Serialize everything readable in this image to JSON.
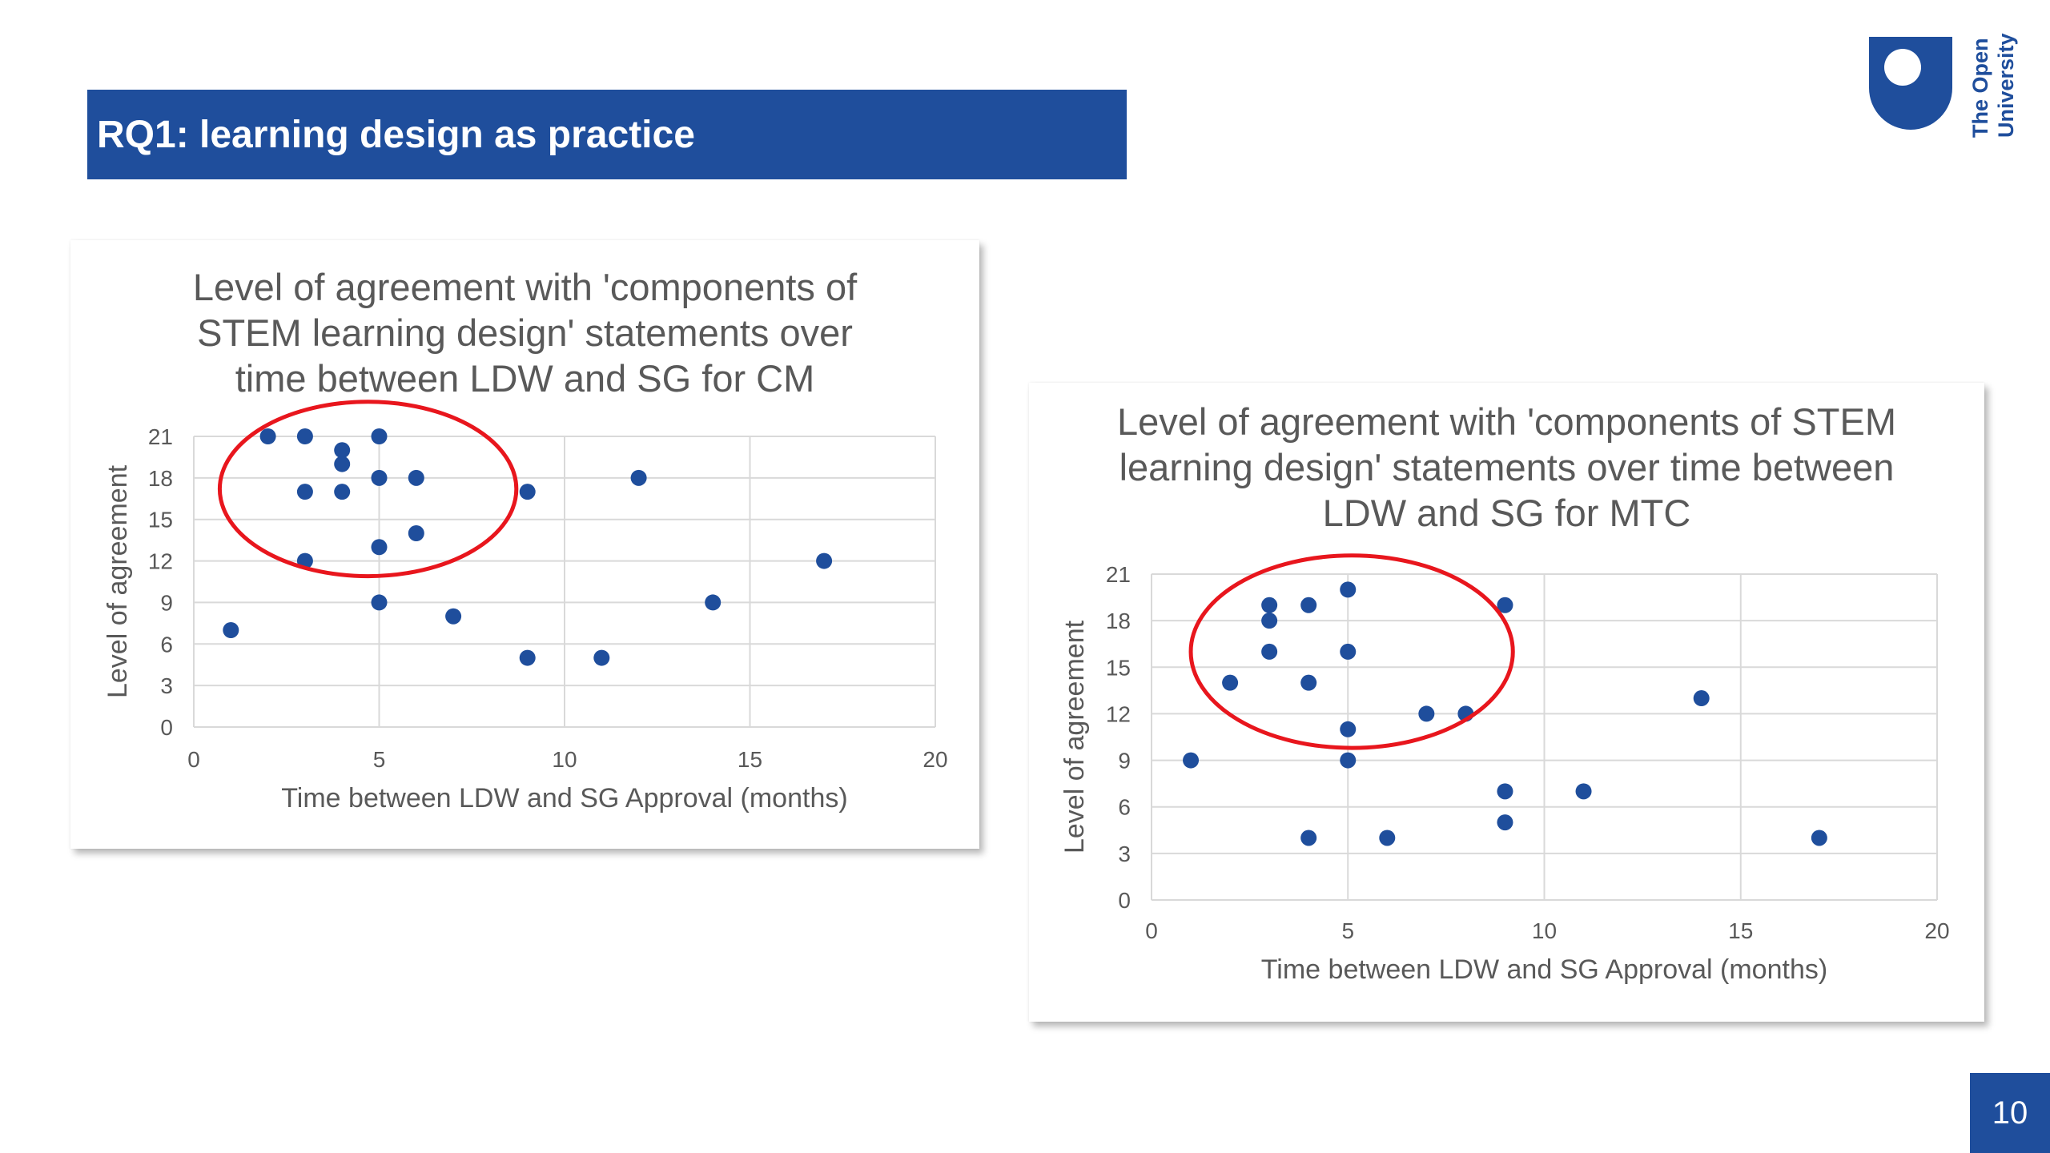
{
  "slide": {
    "title": "RQ1: learning design as practice",
    "logo_text": "The Open University",
    "page_number": "10",
    "brand_color": "#1f4e9c"
  },
  "chart_data": [
    {
      "type": "scatter",
      "title": "Level of agreement with 'components of STEM learning design' statements over time between LDW and SG for CM",
      "xlabel": "Time between LDW and SG Approval (months)",
      "ylabel": "Level of agreement",
      "xlim": [
        0,
        20
      ],
      "ylim": [
        0,
        21
      ],
      "x_ticks": [
        0,
        5,
        10,
        15,
        20
      ],
      "y_ticks": [
        0,
        3,
        6,
        9,
        12,
        15,
        18,
        21
      ],
      "grid": true,
      "marker_color": "#1f4e9c",
      "annotation": {
        "shape": "ellipse",
        "color": "#e8161d",
        "center": [
          4.7,
          17.2
        ],
        "radius": [
          4,
          6.3
        ]
      },
      "series": [
        {
          "x": [
            1,
            2,
            3,
            3,
            3,
            4,
            4,
            4,
            5,
            5,
            5,
            5,
            6,
            6,
            7,
            9,
            9,
            11,
            12,
            14,
            17
          ],
          "y": [
            7,
            21,
            21,
            17,
            12,
            20,
            19,
            17,
            21,
            18,
            13,
            9,
            18,
            14,
            8,
            17,
            5,
            5,
            18,
            9,
            12
          ]
        }
      ]
    },
    {
      "type": "scatter",
      "title": "Level of agreement with 'components of STEM learning design' statements over time between LDW and SG for MTC",
      "xlabel": "Time between LDW and SG Approval (months)",
      "ylabel": "Level of agreement",
      "xlim": [
        0,
        20
      ],
      "ylim": [
        0,
        21
      ],
      "x_ticks": [
        0,
        5,
        10,
        15,
        20
      ],
      "y_ticks": [
        0,
        3,
        6,
        9,
        12,
        15,
        18,
        21
      ],
      "grid": true,
      "marker_color": "#1f4e9c",
      "annotation": {
        "shape": "ellipse",
        "color": "#e8161d",
        "center": [
          5.1,
          16
        ],
        "radius": [
          4.1,
          6.2
        ]
      },
      "series": [
        {
          "x": [
            1,
            2,
            3,
            3,
            3,
            4,
            4,
            4,
            5,
            5,
            5,
            5,
            6,
            7,
            8,
            9,
            9,
            9,
            11,
            14,
            17
          ],
          "y": [
            9,
            14,
            19,
            18,
            16,
            19,
            14,
            4,
            20,
            16,
            11,
            9,
            4,
            12,
            12,
            19,
            7,
            5,
            7,
            13,
            4
          ]
        }
      ]
    }
  ]
}
